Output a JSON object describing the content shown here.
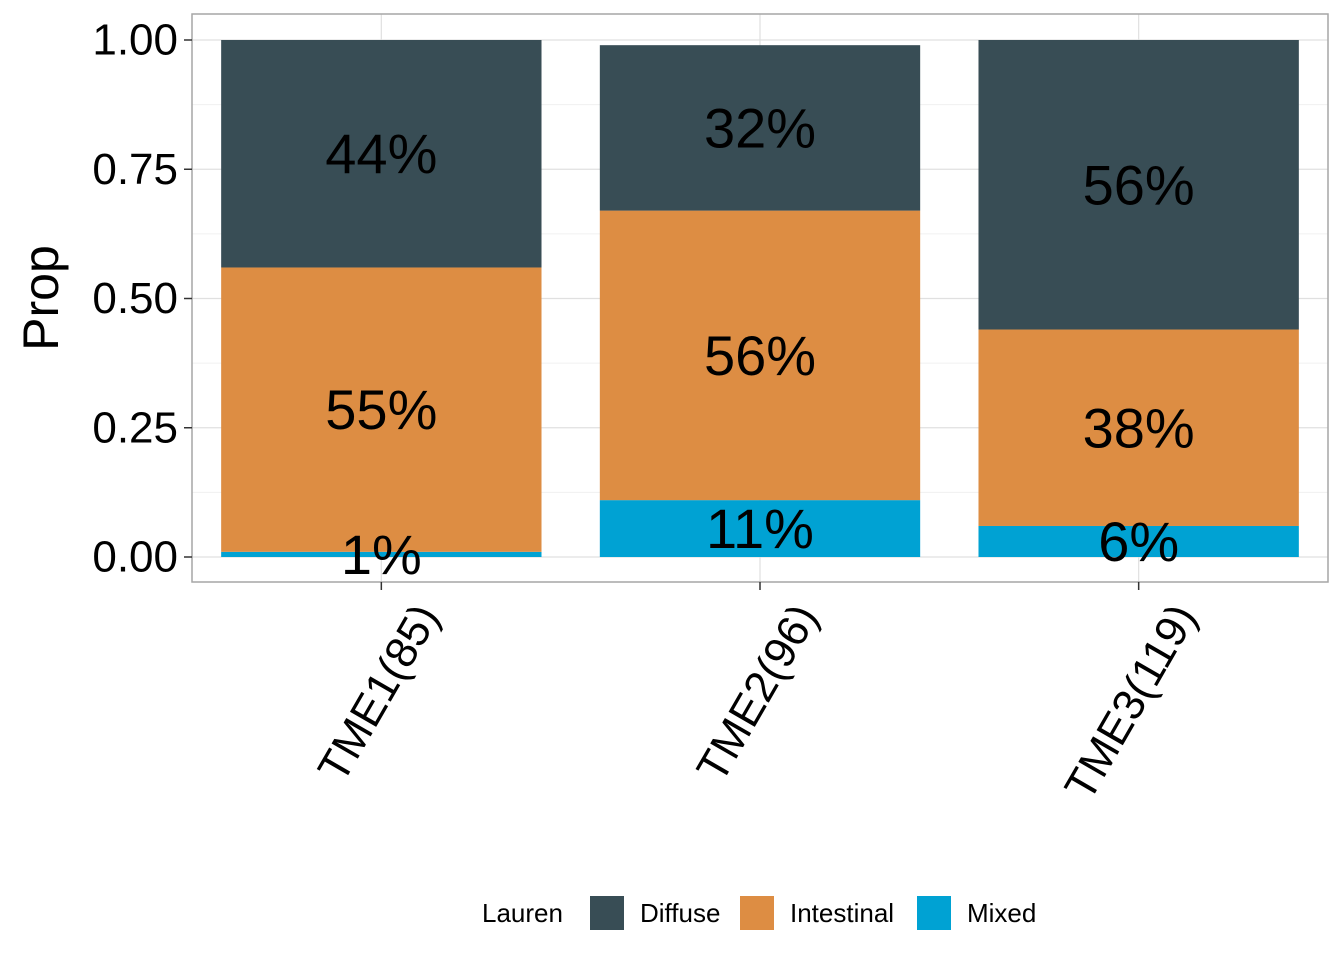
{
  "chart_data": {
    "type": "bar",
    "stacked": true,
    "categories": [
      "TME1(85)",
      "TME2(96)",
      "TME3(119)"
    ],
    "series": [
      {
        "name": "Diffuse",
        "color": "#384d55",
        "values": [
          0.44,
          0.32,
          0.56
        ],
        "labels": [
          "44%",
          "32%",
          "56%"
        ]
      },
      {
        "name": "Intestinal",
        "color": "#dd8d43",
        "values": [
          0.55,
          0.56,
          0.38
        ],
        "labels": [
          "55%",
          "56%",
          "38%"
        ]
      },
      {
        "name": "Mixed",
        "color": "#00a2d3",
        "values": [
          0.01,
          0.11,
          0.06
        ],
        "labels": [
          "1%",
          "11%",
          "6%"
        ]
      }
    ],
    "stack_order_bottom_to_top": [
      "Mixed",
      "Intestinal",
      "Diffuse"
    ],
    "ylabel": "Prop",
    "xlabel": "",
    "ylim": [
      0,
      1
    ],
    "yticks": [
      "0.00",
      "0.25",
      "0.50",
      "0.75",
      "1.00"
    ],
    "ytick_values": [
      0,
      0.25,
      0.5,
      0.75,
      1.0
    ],
    "x_tick_rotation_deg": 60,
    "grid": true,
    "legend": {
      "title": "Lauren",
      "position": "bottom",
      "items": [
        "Diffuse",
        "Intestinal",
        "Mixed"
      ]
    }
  }
}
